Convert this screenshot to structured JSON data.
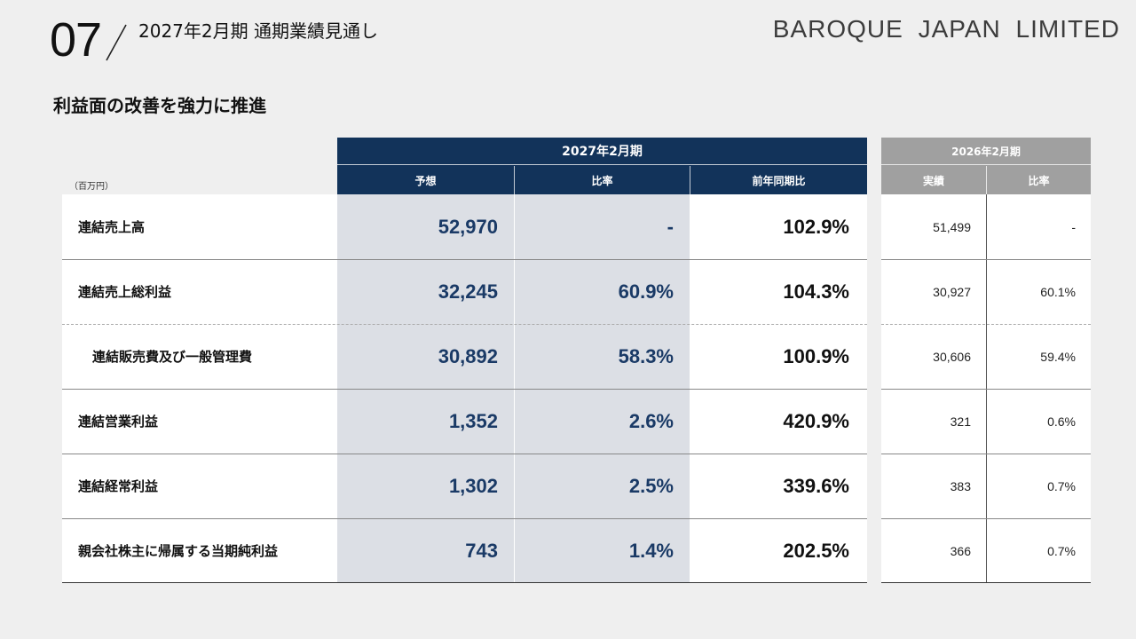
{
  "header": {
    "section_number": "07",
    "title": "2027年2月期 通期業績見通し",
    "brand": "BAROQUE JAPAN LIMITED"
  },
  "subtitle": "利益面の改善を強力に推進",
  "table": {
    "unit": "（百万円）",
    "current_period": "2027年2月期",
    "current_columns": [
      "予想",
      "比率",
      "前年同期比"
    ],
    "prior_period": "2026年2月期",
    "prior_columns": [
      "実績",
      "比率"
    ],
    "rows": [
      {
        "label": "連結売上高",
        "forecast": "52,970",
        "ratio": "-",
        "yoy": "102.9%",
        "actual": "51,499",
        "prior_ratio": "-"
      },
      {
        "label": "連結売上総利益",
        "forecast": "32,245",
        "ratio": "60.9%",
        "yoy": "104.3%",
        "actual": "30,927",
        "prior_ratio": "60.1%"
      },
      {
        "label": "連結販売費及び一般管理費",
        "forecast": "30,892",
        "ratio": "58.3%",
        "yoy": "100.9%",
        "actual": "30,606",
        "prior_ratio": "59.4%"
      },
      {
        "label": "連結営業利益",
        "forecast": "1,352",
        "ratio": "2.6%",
        "yoy": "420.9%",
        "actual": "321",
        "prior_ratio": "0.6%"
      },
      {
        "label": "連結経常利益",
        "forecast": "1,302",
        "ratio": "2.5%",
        "yoy": "339.6%",
        "actual": "383",
        "prior_ratio": "0.7%"
      },
      {
        "label": "親会社株主に帰属する当期純利益",
        "forecast": "743",
        "ratio": "1.4%",
        "yoy": "202.5%",
        "actual": "366",
        "prior_ratio": "0.7%"
      }
    ]
  },
  "colors": {
    "header_navy": "#12335a",
    "header_gray": "#a0a0a0",
    "highlight_cell": "#dcdfe5",
    "value_navy": "#1a3a66"
  }
}
